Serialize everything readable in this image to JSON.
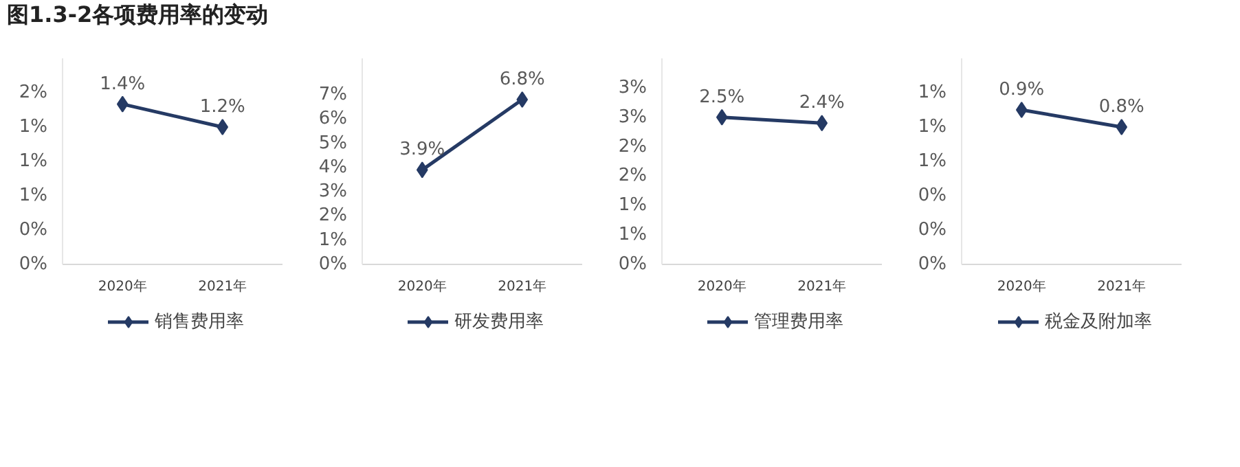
{
  "chart_data": [
    {
      "type": "line",
      "title": "图1.3-2各项费用率的变动",
      "categories": [
        "2020年",
        "2021年"
      ],
      "series": [
        {
          "name": "销售费用率",
          "color": "#253a64",
          "values": [
            1.4,
            1.2
          ],
          "value_labels": [
            "1.4%",
            "1.2%"
          ]
        }
      ],
      "ylim": [
        0,
        1.8
      ],
      "yticks": [
        {
          "value": 0,
          "label": "0%"
        },
        {
          "value": 0.3,
          "label": "0%"
        },
        {
          "value": 0.6,
          "label": "1%"
        },
        {
          "value": 0.9,
          "label": "1%"
        },
        {
          "value": 1.2,
          "label": "1%"
        },
        {
          "value": 1.5,
          "label": "2%"
        }
      ],
      "marker": "diamond",
      "legend": "bottom",
      "grid": false
    },
    {
      "type": "line",
      "categories": [
        "2020年",
        "2021年"
      ],
      "series": [
        {
          "name": "研发费用率",
          "color": "#253a64",
          "values": [
            3.9,
            6.8
          ],
          "value_labels": [
            "3.9%",
            "6.8%"
          ]
        }
      ],
      "ylim": [
        0,
        8.5
      ],
      "yticks": [
        {
          "value": 0,
          "label": "0%"
        },
        {
          "value": 1,
          "label": "1%"
        },
        {
          "value": 2,
          "label": "2%"
        },
        {
          "value": 3,
          "label": "3%"
        },
        {
          "value": 4,
          "label": "4%"
        },
        {
          "value": 5,
          "label": "5%"
        },
        {
          "value": 6,
          "label": "6%"
        },
        {
          "value": 7,
          "label": "7%"
        }
      ],
      "marker": "diamond",
      "legend": "bottom",
      "grid": false
    },
    {
      "type": "line",
      "categories": [
        "2020年",
        "2021年"
      ],
      "series": [
        {
          "name": "管理费用率",
          "color": "#253a64",
          "values": [
            2.5,
            2.4
          ],
          "value_labels": [
            "2.5%",
            "2.4%"
          ]
        }
      ],
      "ylim": [
        0,
        3.5
      ],
      "yticks": [
        {
          "value": 0,
          "label": "0%"
        },
        {
          "value": 0.5,
          "label": "1%"
        },
        {
          "value": 1,
          "label": "1%"
        },
        {
          "value": 1.5,
          "label": "2%"
        },
        {
          "value": 2,
          "label": "2%"
        },
        {
          "value": 2.5,
          "label": "3%"
        },
        {
          "value": 3,
          "label": "3%"
        }
      ],
      "marker": "diamond",
      "legend": "bottom",
      "grid": false
    },
    {
      "type": "line",
      "categories": [
        "2020年",
        "2021年"
      ],
      "series": [
        {
          "name": "税金及附加率",
          "color": "#253a64",
          "values": [
            0.9,
            0.8
          ],
          "value_labels": [
            "0.9%",
            "0.8%"
          ]
        }
      ],
      "ylim": [
        0,
        1.2
      ],
      "yticks": [
        {
          "value": 0,
          "label": "0%"
        },
        {
          "value": 0.2,
          "label": "0%"
        },
        {
          "value": 0.4,
          "label": "0%"
        },
        {
          "value": 0.6,
          "label": "1%"
        },
        {
          "value": 0.8,
          "label": "1%"
        },
        {
          "value": 1.0,
          "label": "1%"
        }
      ],
      "marker": "diamond",
      "legend": "bottom",
      "grid": false
    }
  ]
}
